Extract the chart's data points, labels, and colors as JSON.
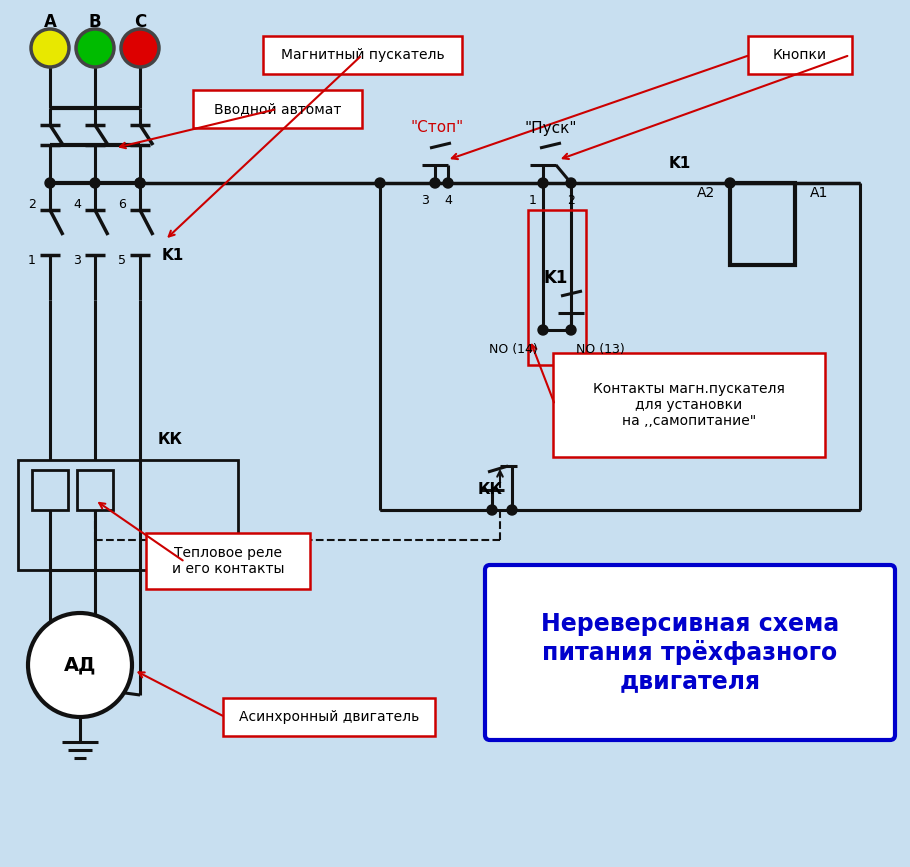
{
  "bg_color": "#c8dff0",
  "phase_A_color": "#e8e800",
  "phase_B_color": "#00bb00",
  "phase_C_color": "#dd0000",
  "line_color": "#111111",
  "red_color": "#cc0000",
  "blue_color": "#0000cc",
  "label_mag_puskat": "Магнитный пускатель",
  "label_vvod": "Вводной автомат",
  "label_stop": "\"Стоп\"",
  "label_pusk": "\"Пуск\"",
  "label_knopki": "Кнопки",
  "label_contacts": "Контакты магн.пускателя\nдля установки\nна ,,самопитание\"",
  "label_teplrel": "Тепловое реле\nи его контакты",
  "label_ad_motor": "Асинхронный двигатель",
  "label_title": "Нереверсивная схема\nпитания трёхфазного\nдвигателя"
}
